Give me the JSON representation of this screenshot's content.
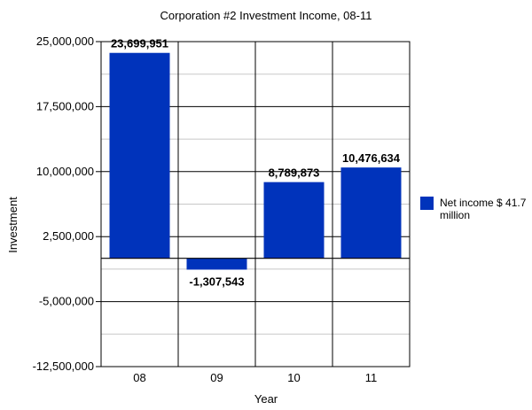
{
  "chart_data": {
    "type": "bar",
    "title": "Corporation #2 Investment Income, 08-11",
    "xlabel": "Year",
    "ylabel": "Investment",
    "categories": [
      "08",
      "09",
      "10",
      "11"
    ],
    "series": [
      {
        "name": "Net income $ 41.7 million",
        "values": [
          23699951,
          -1307543,
          8789873,
          10476634
        ],
        "data_labels": [
          "23,699,951",
          "-1,307,543",
          "8,789,873",
          "10,476,634"
        ]
      }
    ],
    "ylim": [
      -12500000,
      25000000
    ],
    "y_ticks": [
      25000000,
      17500000,
      10000000,
      2500000,
      -5000000,
      -12500000
    ],
    "y_tick_labels": [
      "25,000,000",
      "17,500,000",
      "10,000,000",
      "2,500,000",
      "-5,000,000",
      "-12,500,000"
    ],
    "grid": true,
    "legend_position": "right",
    "bar_color": "#0033bb"
  }
}
